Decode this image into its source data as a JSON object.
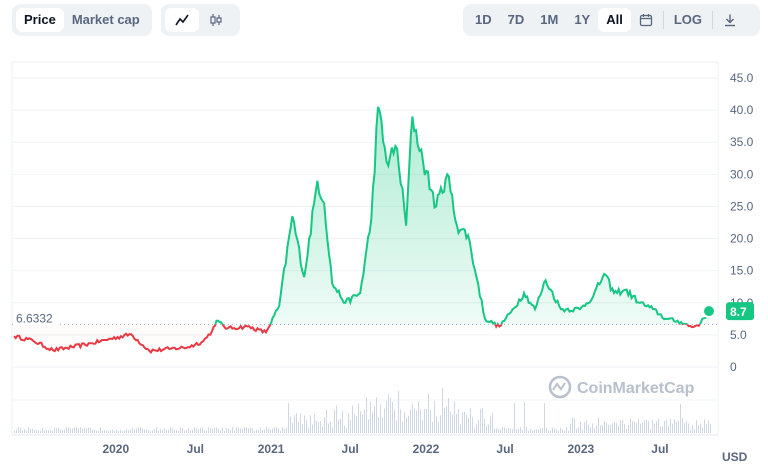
{
  "toolbar": {
    "metric_tabs": [
      "Price",
      "Market cap"
    ],
    "active_metric": "Price",
    "chart_types": [
      {
        "icon": "line-chart-icon",
        "active": true
      },
      {
        "icon": "candlestick-icon",
        "active": false
      }
    ],
    "ranges": [
      "1D",
      "7D",
      "1M",
      "1Y",
      "All"
    ],
    "active_range": "All",
    "calendar_icon": "calendar-icon",
    "log_label": "LOG",
    "download_icon": "download-icon"
  },
  "watermark": "CoinMarketCap",
  "currency": "USD",
  "colors": {
    "up": "#16c784",
    "down": "#ea3943",
    "reference": "#a6b0c3"
  },
  "chart_data": {
    "type": "line",
    "y_ticks": [
      "0",
      "5.0",
      "10.0",
      "15.0",
      "20.0",
      "25.0",
      "30.0",
      "35.0",
      "40.0",
      "45.0"
    ],
    "ylim": [
      0,
      45
    ],
    "x_ticks": [
      "2020",
      "Jul",
      "2021",
      "Jul",
      "2022",
      "Jul",
      "2023",
      "Jul"
    ],
    "reference_line": {
      "value": 6.6332,
      "label": "6.6332"
    },
    "current_price": {
      "value": 8.7,
      "label": "8.7"
    },
    "series": [
      {
        "values": [
          [
            "2019-05-01",
            4.8
          ],
          [
            "2019-06-15",
            4.1
          ],
          [
            "2019-08-01",
            2.6
          ],
          [
            "2019-09-15",
            3.1
          ],
          [
            "2019-11-01",
            3.7
          ],
          [
            "2019-12-15",
            4.4
          ],
          [
            "2020-02-01",
            5.1
          ],
          [
            "2020-03-15",
            2.5
          ],
          [
            "2020-05-01",
            2.8
          ],
          [
            "2020-06-15",
            3.1
          ],
          [
            "2020-07-20",
            4.0
          ],
          [
            "2020-08-10",
            5.6
          ],
          [
            "2020-08-20",
            7.2
          ],
          [
            "2020-09-15",
            6.0
          ],
          [
            "2020-11-01",
            6.3
          ],
          [
            "2020-12-15",
            5.4
          ],
          [
            "2021-01-15",
            9.5
          ],
          [
            "2021-02-15",
            23.5
          ],
          [
            "2021-03-15",
            14.0
          ],
          [
            "2021-04-15",
            29.0
          ],
          [
            "2021-05-01",
            25.5
          ],
          [
            "2021-05-20",
            13.0
          ],
          [
            "2021-06-20",
            10.0
          ],
          [
            "2021-07-25",
            11.5
          ],
          [
            "2021-08-20",
            23.0
          ],
          [
            "2021-09-05",
            40.5
          ],
          [
            "2021-09-25",
            32.0
          ],
          [
            "2021-10-20",
            34.0
          ],
          [
            "2021-11-10",
            22.0
          ],
          [
            "2021-11-25",
            39.0
          ],
          [
            "2021-12-20",
            32.0
          ],
          [
            "2022-01-20",
            25.0
          ],
          [
            "2022-02-15",
            30.0
          ],
          [
            "2022-03-10",
            22.0
          ],
          [
            "2022-04-05",
            20.5
          ],
          [
            "2022-04-25",
            14.0
          ],
          [
            "2022-05-15",
            7.5
          ],
          [
            "2022-06-18",
            6.3
          ],
          [
            "2022-07-15",
            8.5
          ],
          [
            "2022-08-15",
            11.5
          ],
          [
            "2022-09-10",
            9.0
          ],
          [
            "2022-10-05",
            13.5
          ],
          [
            "2022-11-10",
            9.0
          ],
          [
            "2022-12-25",
            9.0
          ],
          [
            "2023-01-25",
            11.0
          ],
          [
            "2023-02-20",
            14.5
          ],
          [
            "2023-03-15",
            11.5
          ],
          [
            "2023-04-10",
            12.0
          ],
          [
            "2023-05-15",
            10.0
          ],
          [
            "2023-06-15",
            9.0
          ],
          [
            "2023-07-15",
            7.5
          ],
          [
            "2023-08-20",
            7.0
          ],
          [
            "2023-09-15",
            6.2
          ],
          [
            "2023-10-05",
            6.8
          ],
          [
            "2023-10-25",
            8.7
          ]
        ]
      }
    ]
  }
}
